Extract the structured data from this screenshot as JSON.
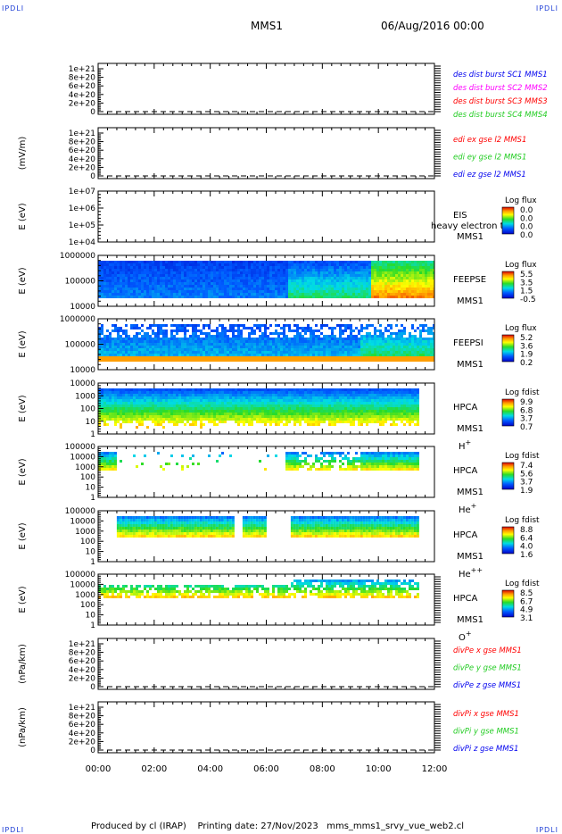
{
  "corners": {
    "tl": "IPDLI",
    "tr": "IPDLI",
    "bl": "IPDLI",
    "br": "IPDLI"
  },
  "header": {
    "spacecraft": "MMS1",
    "date": "06/Aug/2016 00:00"
  },
  "footer": {
    "produced": "Produced by cl (IRAP)",
    "printing": "Printing date: 27/Nov/2023",
    "script": "mms_mms1_srvy_vue_web2.cl"
  },
  "colors": {
    "red": "#ff0000",
    "green": "#22cc22",
    "blue": "#0000ee",
    "magenta": "#ff00ff",
    "frame": "#000000"
  },
  "chart_data": [
    {
      "type": "line",
      "ylabel": "",
      "ytick_labels": [
        "1e+21",
        "8e+20",
        "6e+20",
        "4e+20",
        "2e+20",
        "0"
      ],
      "ylim": [
        0,
        1e+21
      ],
      "legend": [
        {
          "text": "des dist burst SC1 MMS1",
          "color": "#0000ee"
        },
        {
          "text": "des dist burst SC2 MMS2",
          "color": "#ff00ff"
        },
        {
          "text": "des dist burst SC3 MMS3",
          "color": "#ff0000"
        },
        {
          "text": "des dist burst SC4 MMS4",
          "color": "#22cc22"
        }
      ],
      "series": []
    },
    {
      "type": "line",
      "ylabel": "(mV/m)",
      "ytick_labels": [
        "1e+21",
        "8e+20",
        "6e+20",
        "4e+20",
        "2e+20",
        "0"
      ],
      "ylim": [
        0,
        1e+21
      ],
      "legend": [
        {
          "text": "edi ex gse l2 MMS1",
          "color": "#ff0000"
        },
        {
          "text": "edi ey gse l2 MMS1",
          "color": "#22cc22"
        },
        {
          "text": "edi ez gse l2 MMS1",
          "color": "#0000ee"
        }
      ],
      "series": []
    },
    {
      "type": "heatmap",
      "ylabel": "E (eV)",
      "ytick_labels": [
        "1e+07",
        "1e+06",
        "1e+05",
        "1e+04"
      ],
      "yscale": "log",
      "instrument": [
        "EIS",
        "MMS1"
      ],
      "overlay_text": "heavy electron to",
      "colorbar": {
        "title": "Log flux",
        "ticks": [
          "0.0",
          "0.0",
          "0.0",
          "0.0"
        ]
      },
      "occupied_time_range": null
    },
    {
      "type": "heatmap",
      "ylabel": "E (eV)",
      "ytick_labels": [
        "1000000",
        "100000",
        "10000"
      ],
      "yscale": "log",
      "instrument": [
        "FEEPSE",
        "MMS1"
      ],
      "colorbar": {
        "title": "Log flux",
        "ticks": [
          "5.5",
          "3.5",
          "1.5",
          "-0.5"
        ]
      },
      "occupied_time_range": [
        "00:00",
        "12:00"
      ]
    },
    {
      "type": "heatmap",
      "ylabel": "E (eV)",
      "ytick_labels": [
        "1000000",
        "100000",
        "10000"
      ],
      "yscale": "log",
      "instrument": [
        "FEEPSI",
        "MMS1"
      ],
      "colorbar": {
        "title": "Log flux",
        "ticks": [
          "5.2",
          "3.6",
          "1.9",
          "0.2"
        ]
      },
      "occupied_time_range": [
        "00:00",
        "12:00"
      ]
    },
    {
      "type": "heatmap",
      "ylabel": "E (eV)",
      "ytick_labels": [
        "10000",
        "1000",
        "100",
        "10",
        "1"
      ],
      "yscale": "log",
      "instrument": [
        "HPCA",
        "MMS1"
      ],
      "species": "H",
      "species_sup": "+",
      "colorbar": {
        "title": "Log fdist",
        "ticks": [
          "9.9",
          "6.8",
          "3.7",
          "0.7"
        ]
      },
      "occupied_time_range": [
        "00:00",
        "11:25"
      ]
    },
    {
      "type": "heatmap",
      "ylabel": "E (eV)",
      "ytick_labels": [
        "100000",
        "10000",
        "1000",
        "100",
        "10",
        "1"
      ],
      "yscale": "log",
      "instrument": [
        "HPCA",
        "MMS1"
      ],
      "species": "He",
      "species_sup": "+",
      "colorbar": {
        "title": "Log fdist",
        "ticks": [
          "7.4",
          "5.6",
          "3.7",
          "1.9"
        ]
      },
      "occupied_time_range": [
        "00:00",
        "11:25"
      ]
    },
    {
      "type": "heatmap",
      "ylabel": "E (eV)",
      "ytick_labels": [
        "100000",
        "10000",
        "1000",
        "100",
        "10",
        "1"
      ],
      "yscale": "log",
      "instrument": [
        "HPCA",
        "MMS1"
      ],
      "species": "He",
      "species_sup": "++",
      "colorbar": {
        "title": "Log fdist",
        "ticks": [
          "8.8",
          "6.4",
          "4.0",
          "1.6"
        ]
      },
      "occupied_time_range": [
        "00:40",
        "11:25"
      ]
    },
    {
      "type": "heatmap",
      "ylabel": "E (eV)",
      "ytick_labels": [
        "100000",
        "10000",
        "1000",
        "100",
        "10",
        "1"
      ],
      "yscale": "log",
      "instrument": [
        "HPCA",
        "MMS1"
      ],
      "species": "O",
      "species_sup": "+",
      "colorbar": {
        "title": "Log fdist",
        "ticks": [
          "8.5",
          "6.7",
          "4.9",
          "3.1"
        ]
      },
      "occupied_time_range": [
        "00:00",
        "11:25"
      ]
    },
    {
      "type": "line",
      "ylabel": "(nPa/km)",
      "ytick_labels": [
        "1e+21",
        "8e+20",
        "6e+20",
        "4e+20",
        "2e+20",
        "0"
      ],
      "ylim": [
        0,
        1e+21
      ],
      "legend": [
        {
          "text": "divPe x gse MMS1",
          "color": "#ff0000"
        },
        {
          "text": "divPe y gse MMS1",
          "color": "#22cc22"
        },
        {
          "text": "divPe z gse MMS1",
          "color": "#0000ee"
        }
      ],
      "series": []
    },
    {
      "type": "line",
      "ylabel": "(nPa/km)",
      "ytick_labels": [
        "1e+21",
        "8e+20",
        "6e+20",
        "4e+20",
        "2e+20",
        "0"
      ],
      "ylim": [
        0,
        1e+21
      ],
      "legend": [
        {
          "text": "divPi x gse MMS1",
          "color": "#ff0000"
        },
        {
          "text": "divPi y gse MMS1",
          "color": "#22cc22"
        },
        {
          "text": "divPi z gse MMS1",
          "color": "#0000ee"
        }
      ],
      "series": []
    }
  ],
  "xaxis": {
    "tick_labels": [
      "00:00",
      "02:00",
      "04:00",
      "06:00",
      "08:00",
      "10:00",
      "12:00"
    ]
  }
}
